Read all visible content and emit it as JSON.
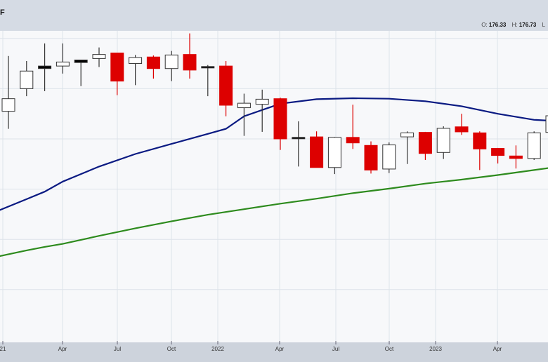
{
  "header": {
    "title": "F",
    "open_label": "O:",
    "open_value": "176.33",
    "high_label": "H:",
    "high_value": "176.73",
    "low_label": "L"
  },
  "colors": {
    "up_fill": "#ffffff",
    "down_fill": "#dd0000",
    "neutral_fill": "#000000",
    "ma_fast": "#0a1a82",
    "ma_slow": "#2e8b1e",
    "grid": "#dde3ea",
    "plot_bg": "#f7f8fa"
  },
  "chart_data": {
    "type": "candlestick",
    "title": "",
    "xlabel": "",
    "ylabel": "",
    "x_tick_labels": [
      "21",
      "Apr",
      "Jul",
      "Oct",
      "2022",
      "Apr",
      "Jul",
      "Oct",
      "2023",
      "Apr"
    ],
    "y_scale": "linear",
    "y_range": [
      0,
      6.2
    ],
    "grid": true,
    "candles": [
      {
        "period": 1,
        "open": 4.6,
        "high": 5.7,
        "low": 4.25,
        "close": 4.85,
        "color": "up"
      },
      {
        "period": 2,
        "open": 5.05,
        "high": 5.6,
        "low": 4.9,
        "close": 5.4,
        "color": "up"
      },
      {
        "period": 3,
        "open": 5.45,
        "high": 5.95,
        "low": 5.0,
        "close": 5.5,
        "color": "neutral"
      },
      {
        "period": 4,
        "open": 5.5,
        "high": 5.95,
        "low": 5.35,
        "close": 5.58,
        "color": "up"
      },
      {
        "period": 5,
        "open": 5.57,
        "high": 5.62,
        "low": 5.1,
        "close": 5.62,
        "color": "neutral"
      },
      {
        "period": 6,
        "open": 5.65,
        "high": 5.87,
        "low": 5.48,
        "close": 5.73,
        "color": "up"
      },
      {
        "period": 7,
        "open": 5.76,
        "high": 5.76,
        "low": 4.92,
        "close": 5.2,
        "color": "down"
      },
      {
        "period": 8,
        "open": 5.55,
        "high": 5.72,
        "low": 5.12,
        "close": 5.67,
        "color": "up"
      },
      {
        "period": 9,
        "open": 5.68,
        "high": 5.71,
        "low": 5.25,
        "close": 5.45,
        "color": "down"
      },
      {
        "period": 10,
        "open": 5.45,
        "high": 5.8,
        "low": 5.2,
        "close": 5.72,
        "color": "up"
      },
      {
        "period": 11,
        "open": 5.73,
        "high": 6.15,
        "low": 5.25,
        "close": 5.42,
        "color": "down"
      },
      {
        "period": 12,
        "open": 5.48,
        "high": 5.52,
        "low": 4.9,
        "close": 5.49,
        "color": "neutral"
      },
      {
        "period": 13,
        "open": 5.5,
        "high": 5.6,
        "low": 4.5,
        "close": 4.72,
        "color": "down"
      },
      {
        "period": 14,
        "open": 4.67,
        "high": 4.95,
        "low": 4.11,
        "close": 4.76,
        "color": "up"
      },
      {
        "period": 15,
        "open": 4.74,
        "high": 5.03,
        "low": 4.19,
        "close": 4.84,
        "color": "up"
      },
      {
        "period": 16,
        "open": 4.85,
        "high": 4.87,
        "low": 3.83,
        "close": 4.05,
        "color": "down"
      },
      {
        "period": 17,
        "open": 4.06,
        "high": 4.4,
        "low": 3.5,
        "close": 4.08,
        "color": "neutral"
      },
      {
        "period": 18,
        "open": 4.09,
        "high": 4.2,
        "low": 3.48,
        "close": 3.48,
        "color": "down"
      },
      {
        "period": 19,
        "open": 3.48,
        "high": 4.09,
        "low": 3.35,
        "close": 4.08,
        "color": "up"
      },
      {
        "period": 20,
        "open": 4.08,
        "high": 4.73,
        "low": 3.85,
        "close": 3.97,
        "color": "down"
      },
      {
        "period": 21,
        "open": 3.43,
        "high": 4.0,
        "low": 3.36,
        "close": 3.92,
        "color": "down"
      },
      {
        "period": 22,
        "open": 3.45,
        "high": 3.98,
        "low": 3.37,
        "close": 3.93,
        "color": "up"
      },
      {
        "period": 23,
        "open": 4.09,
        "high": 4.2,
        "low": 3.55,
        "close": 4.17,
        "color": "up"
      },
      {
        "period": 24,
        "open": 4.18,
        "high": 4.19,
        "low": 3.63,
        "close": 3.76,
        "color": "down"
      },
      {
        "period": 25,
        "open": 3.78,
        "high": 4.3,
        "low": 3.65,
        "close": 4.26,
        "color": "up"
      },
      {
        "period": 26,
        "open": 4.29,
        "high": 4.55,
        "low": 4.13,
        "close": 4.19,
        "color": "down"
      },
      {
        "period": 27,
        "open": 4.17,
        "high": 4.2,
        "low": 3.43,
        "close": 3.85,
        "color": "down"
      },
      {
        "period": 28,
        "open": 3.86,
        "high": 3.87,
        "low": 3.56,
        "close": 3.72,
        "color": "down"
      },
      {
        "period": 29,
        "open": 3.71,
        "high": 3.92,
        "low": 3.46,
        "close": 3.66,
        "color": "down"
      },
      {
        "period": 30,
        "open": 3.66,
        "high": 4.2,
        "low": 3.63,
        "close": 4.17,
        "color": "up"
      },
      {
        "period": 31,
        "open": 4.18,
        "high": 4.53,
        "low": 4.17,
        "close": 4.51,
        "color": "up"
      }
    ],
    "series": [
      {
        "kind": "moving_average_fast",
        "points": [
          [
            0.3,
            2.6
          ],
          [
            2,
            2.85
          ],
          [
            3,
            3.0
          ],
          [
            4,
            3.2
          ],
          [
            6,
            3.5
          ],
          [
            8,
            3.75
          ],
          [
            10,
            3.95
          ],
          [
            12,
            4.15
          ],
          [
            13,
            4.25
          ],
          [
            14,
            4.5
          ],
          [
            16,
            4.75
          ],
          [
            18,
            4.84
          ],
          [
            20,
            4.86
          ],
          [
            22,
            4.85
          ],
          [
            24,
            4.8
          ],
          [
            26,
            4.7
          ],
          [
            28,
            4.55
          ],
          [
            30,
            4.43
          ],
          [
            31,
            4.41
          ]
        ]
      },
      {
        "kind": "moving_average_slow",
        "points": [
          [
            0.3,
            1.7
          ],
          [
            2,
            1.83
          ],
          [
            3,
            1.9
          ],
          [
            4,
            1.96
          ],
          [
            6,
            2.12
          ],
          [
            8,
            2.27
          ],
          [
            10,
            2.41
          ],
          [
            12,
            2.54
          ],
          [
            14,
            2.65
          ],
          [
            16,
            2.76
          ],
          [
            18,
            2.86
          ],
          [
            20,
            2.97
          ],
          [
            22,
            3.06
          ],
          [
            24,
            3.16
          ],
          [
            26,
            3.24
          ],
          [
            28,
            3.33
          ],
          [
            30,
            3.43
          ],
          [
            31,
            3.48
          ]
        ]
      }
    ]
  }
}
